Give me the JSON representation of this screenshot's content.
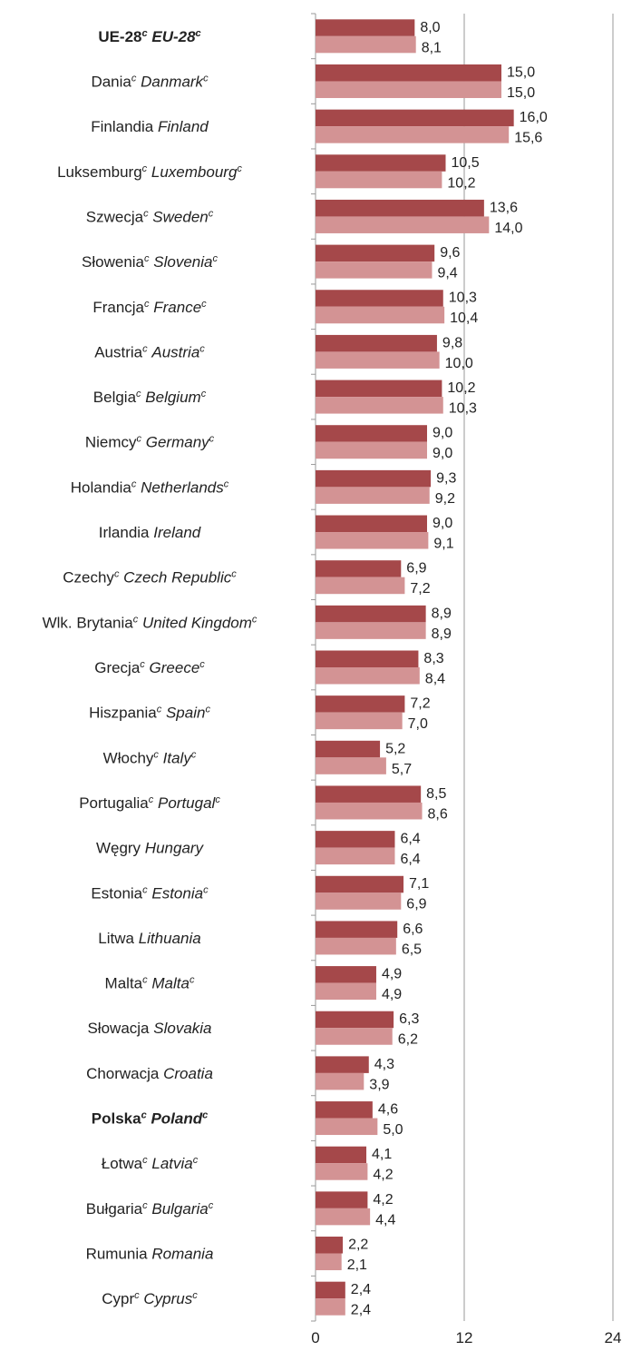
{
  "chart_data": {
    "type": "bar",
    "orientation": "horizontal",
    "categories": [
      {
        "pl": "UE-28",
        "en": "EU-28",
        "note": "c",
        "bold": true
      },
      {
        "pl": "Dania",
        "en": "Danmark",
        "note": "c"
      },
      {
        "pl": "Finlandia",
        "en": "Finland"
      },
      {
        "pl": "Luksemburg",
        "en": "Luxembourg",
        "note": "c"
      },
      {
        "pl": "Szwecja",
        "en": "Sweden",
        "note": "c"
      },
      {
        "pl": "Słowenia",
        "en": "Slovenia",
        "note": "c"
      },
      {
        "pl": "Francja",
        "en": "France",
        "note": "c"
      },
      {
        "pl": "Austria",
        "en": "Austria",
        "note": "c"
      },
      {
        "pl": "Belgia",
        "en": "Belgium",
        "note": "c"
      },
      {
        "pl": "Niemcy",
        "en": "Germany",
        "note": "c"
      },
      {
        "pl": "Holandia",
        "en": "Netherlands",
        "note": "c"
      },
      {
        "pl": "Irlandia",
        "en": "Ireland"
      },
      {
        "pl": "Czechy",
        "en": "Czech Republic",
        "note": "c"
      },
      {
        "pl": "Wlk. Brytania",
        "en": "United Kingdom",
        "note": "c"
      },
      {
        "pl": "Grecja",
        "en": "Greece",
        "note": "c"
      },
      {
        "pl": "Hiszpania",
        "en": "Spain",
        "note": "c"
      },
      {
        "pl": "Włochy",
        "en": "Italy",
        "note": "c"
      },
      {
        "pl": "Portugalia",
        "en": "Portugal",
        "note": "c"
      },
      {
        "pl": "Węgry",
        "en": "Hungary"
      },
      {
        "pl": "Estonia",
        "en": "Estonia",
        "note": "c"
      },
      {
        "pl": "Litwa",
        "en": "Lithuania"
      },
      {
        "pl": "Malta",
        "en": "Malta",
        "note": "c"
      },
      {
        "pl": "Słowacja",
        "en": "Slovakia"
      },
      {
        "pl": "Chorwacja",
        "en": "Croatia"
      },
      {
        "pl": "Polska",
        "en": "Poland",
        "note": "c",
        "bold": true
      },
      {
        "pl": "Łotwa",
        "en": "Latvia",
        "note": "c"
      },
      {
        "pl": "Bułgaria",
        "en": "Bulgaria",
        "note": "c"
      },
      {
        "pl": "Rumunia",
        "en": "Romania"
      },
      {
        "pl": "Cypr",
        "en": "Cyprus",
        "note": "c"
      }
    ],
    "series": [
      {
        "color": "#a5484a",
        "values": [
          8.0,
          15.0,
          16.0,
          10.5,
          13.6,
          9.6,
          10.3,
          9.8,
          10.2,
          9.0,
          9.3,
          9.0,
          6.9,
          8.9,
          8.3,
          7.2,
          5.2,
          8.5,
          6.4,
          7.1,
          6.6,
          4.9,
          6.3,
          4.3,
          4.6,
          4.1,
          4.2,
          2.2,
          2.4
        ],
        "value_labels": [
          "8,0",
          "15,0",
          "16,0",
          "10,5",
          "13,6",
          "9,6",
          "10,3",
          "9,8",
          "10,2",
          "9,0",
          "9,3",
          "9,0",
          "6,9",
          "8,9",
          "8,3",
          "7,2",
          "5,2",
          "8,5",
          "6,4",
          "7,1",
          "6,6",
          "4,9",
          "6,3",
          "4,3",
          "4,6",
          "4,1",
          "4,2",
          "2,2",
          "2,4"
        ]
      },
      {
        "color": "#d39394",
        "values": [
          8.1,
          15.0,
          15.6,
          10.2,
          14.0,
          9.4,
          10.4,
          10.0,
          10.3,
          9.0,
          9.2,
          9.1,
          7.2,
          8.9,
          8.4,
          7.0,
          5.7,
          8.6,
          6.4,
          6.9,
          6.5,
          4.9,
          6.2,
          3.9,
          5.0,
          4.2,
          4.4,
          2.1,
          2.4
        ],
        "value_labels": [
          "8,1",
          "15,0",
          "15,6",
          "10,2",
          "14,0",
          "9,4",
          "10,4",
          "10,0",
          "10,3",
          "9,0",
          "9,2",
          "9,1",
          "7,2",
          "8,9",
          "8,4",
          "7,0",
          "5,7",
          "8,6",
          "6,4",
          "6,9",
          "6,5",
          "4,9",
          "6,2",
          "3,9",
          "5,0",
          "4,2",
          "4,4",
          "2,1",
          "2,4"
        ]
      }
    ],
    "xlim": [
      0,
      24
    ],
    "xticks": [
      0,
      12,
      24
    ],
    "grid": true
  }
}
